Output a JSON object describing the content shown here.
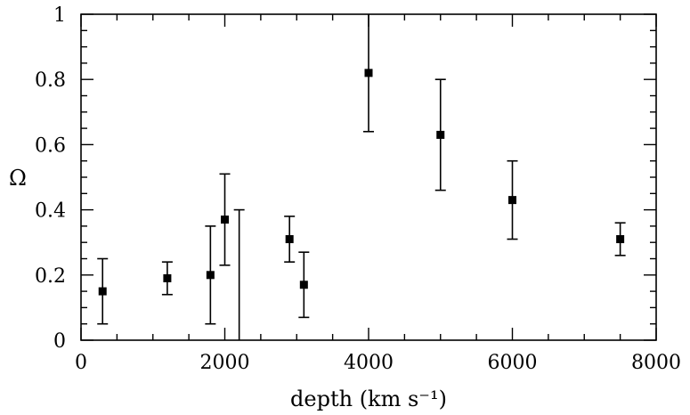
{
  "chart_data": {
    "type": "scatter",
    "title": "",
    "xlabel": "depth (km s⁻¹)",
    "ylabel": "Ω",
    "xlim": [
      0,
      8000
    ],
    "ylim": [
      0,
      1
    ],
    "x_major_ticks": [
      0,
      2000,
      4000,
      6000,
      8000
    ],
    "x_tick_labels": [
      "0",
      "2000",
      "4000",
      "6000",
      "8000"
    ],
    "x_minor_step": 500,
    "y_major_ticks": [
      0,
      0.2,
      0.4,
      0.6,
      0.8,
      1
    ],
    "y_tick_labels": [
      "0",
      "0.2",
      "0.4",
      "0.6",
      "0.8",
      "1"
    ],
    "y_minor_step": 0.05,
    "grid": false,
    "marker": "square",
    "points": [
      {
        "x": 300,
        "y": 0.15,
        "lo": 0.05,
        "hi": 0.25
      },
      {
        "x": 1200,
        "y": 0.19,
        "lo": 0.14,
        "hi": 0.24
      },
      {
        "x": 1800,
        "y": 0.2,
        "lo": 0.05,
        "hi": 0.35
      },
      {
        "x": 2000,
        "y": 0.37,
        "lo": 0.23,
        "hi": 0.51
      },
      {
        "x": 2200,
        "y": null,
        "lo": 0.0,
        "hi": 0.4
      },
      {
        "x": 2900,
        "y": 0.31,
        "lo": 0.24,
        "hi": 0.38
      },
      {
        "x": 3100,
        "y": 0.17,
        "lo": 0.07,
        "hi": 0.27
      },
      {
        "x": 4000,
        "y": 0.82,
        "lo": 0.64,
        "hi": 1.0
      },
      {
        "x": 5000,
        "y": 0.63,
        "lo": 0.46,
        "hi": 0.8
      },
      {
        "x": 6000,
        "y": 0.43,
        "lo": 0.31,
        "hi": 0.55
      },
      {
        "x": 7500,
        "y": 0.31,
        "lo": 0.26,
        "hi": 0.36
      }
    ]
  }
}
